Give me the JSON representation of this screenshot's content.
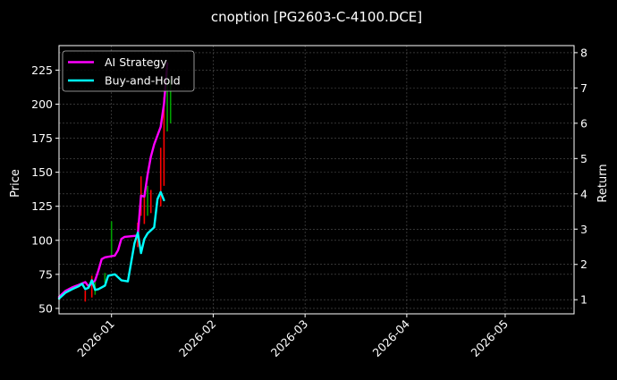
{
  "chart_data": {
    "type": "line",
    "title": "cnoption [PG2603-C-4100.DCE]",
    "xlabel": "",
    "ylabel": "Price",
    "y2label": "Return",
    "background": "#000000",
    "grid": true,
    "legend_position": "upper left",
    "x_ticks": [
      "2026-01",
      "2026-02",
      "2026-03",
      "2026-04",
      "2026-05"
    ],
    "y_ticks": [
      50,
      75,
      100,
      125,
      150,
      175,
      200,
      225
    ],
    "y2_ticks": [
      1,
      2,
      3,
      4,
      5,
      6,
      7,
      8
    ],
    "ylim": [
      46,
      243
    ],
    "y2lim": [
      0.6,
      8.2
    ],
    "xlim": [
      "2025-12-16",
      "2026-05-22"
    ],
    "legend": [
      {
        "name": "AI Strategy",
        "color": "#ff00ff"
      },
      {
        "name": "Buy-and-Hold",
        "color": "#00ffff"
      }
    ],
    "series": [
      {
        "name": "AI Strategy",
        "axis": "return",
        "color": "#ff00ff",
        "points": [
          [
            "2025-12-16",
            1.08
          ],
          [
            "2025-12-18",
            1.25
          ],
          [
            "2025-12-20",
            1.35
          ],
          [
            "2025-12-22",
            1.42
          ],
          [
            "2025-12-24",
            1.5
          ],
          [
            "2025-12-25",
            1.38
          ],
          [
            "2025-12-26",
            1.46
          ],
          [
            "2025-12-27",
            1.55
          ],
          [
            "2025-12-28",
            1.82
          ],
          [
            "2025-12-29",
            2.15
          ],
          [
            "2025-12-30",
            2.2
          ],
          [
            "2026-01-02",
            2.25
          ],
          [
            "2026-01-03",
            2.4
          ],
          [
            "2026-01-04",
            2.72
          ],
          [
            "2026-01-05",
            2.78
          ],
          [
            "2026-01-09",
            2.82
          ],
          [
            "2026-01-10",
            3.95
          ],
          [
            "2026-01-11",
            3.92
          ],
          [
            "2026-01-12",
            4.55
          ],
          [
            "2026-01-13",
            5.05
          ],
          [
            "2026-01-14",
            5.4
          ],
          [
            "2026-01-16",
            5.9
          ],
          [
            "2026-01-17",
            6.55
          ],
          [
            "2026-01-18",
            7.7
          ]
        ]
      },
      {
        "name": "Buy-and-Hold",
        "axis": "return",
        "color": "#00ffff",
        "points": [
          [
            "2025-12-16",
            1.03
          ],
          [
            "2025-12-18",
            1.2
          ],
          [
            "2025-12-20",
            1.3
          ],
          [
            "2025-12-22",
            1.38
          ],
          [
            "2025-12-23",
            1.45
          ],
          [
            "2025-12-24",
            1.3
          ],
          [
            "2025-12-25",
            1.34
          ],
          [
            "2025-12-26",
            1.55
          ],
          [
            "2025-12-27",
            1.28
          ],
          [
            "2025-12-28",
            1.3
          ],
          [
            "2025-12-30",
            1.4
          ],
          [
            "2025-12-31",
            1.68
          ],
          [
            "2026-01-02",
            1.72
          ],
          [
            "2026-01-04",
            1.55
          ],
          [
            "2026-01-06",
            1.52
          ],
          [
            "2026-01-08",
            2.6
          ],
          [
            "2026-01-09",
            2.9
          ],
          [
            "2026-01-10",
            2.32
          ],
          [
            "2026-01-11",
            2.72
          ],
          [
            "2026-01-12",
            2.88
          ],
          [
            "2026-01-14",
            3.05
          ],
          [
            "2026-01-15",
            3.85
          ],
          [
            "2026-01-16",
            4.05
          ],
          [
            "2026-01-17",
            3.82
          ]
        ]
      }
    ],
    "candles": {
      "axis": "price",
      "up_color": "#00a000",
      "down_color": "#ff0000",
      "items": [
        {
          "date": "2025-12-24",
          "low": 55,
          "high": 63,
          "dir": "down"
        },
        {
          "date": "2025-12-26",
          "low": 58,
          "high": 74,
          "dir": "down"
        },
        {
          "date": "2025-12-27",
          "low": 60,
          "high": 72,
          "dir": "up"
        },
        {
          "date": "2025-12-30",
          "low": 69,
          "high": 76,
          "dir": "up"
        },
        {
          "date": "2026-01-01",
          "low": 88,
          "high": 114,
          "dir": "up"
        },
        {
          "date": "2026-01-09",
          "low": 95,
          "high": 113,
          "dir": "down"
        },
        {
          "date": "2026-01-10",
          "low": 118,
          "high": 147,
          "dir": "down"
        },
        {
          "date": "2026-01-11",
          "low": 112,
          "high": 132,
          "dir": "down"
        },
        {
          "date": "2026-01-12",
          "low": 118,
          "high": 140,
          "dir": "up"
        },
        {
          "date": "2026-01-13",
          "low": 120,
          "high": 137,
          "dir": "down"
        },
        {
          "date": "2026-01-16",
          "low": 125,
          "high": 168,
          "dir": "down"
        },
        {
          "date": "2026-01-17",
          "low": 140,
          "high": 205,
          "dir": "down"
        },
        {
          "date": "2026-01-18",
          "low": 180,
          "high": 230,
          "dir": "up"
        },
        {
          "date": "2026-01-19",
          "low": 186,
          "high": 218,
          "dir": "up"
        }
      ]
    }
  }
}
